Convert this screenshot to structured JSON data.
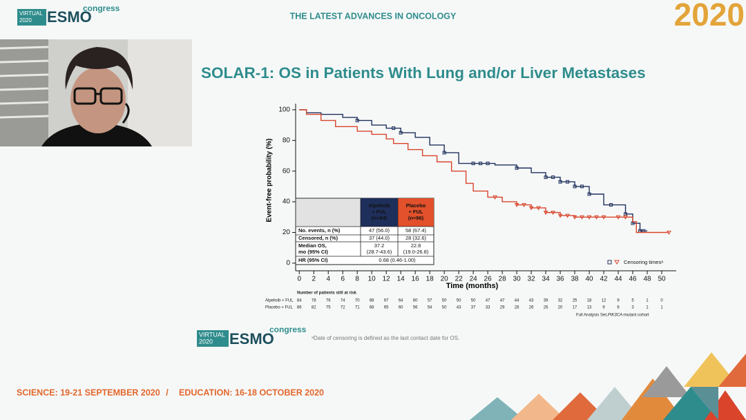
{
  "header": {
    "logo": {
      "badge": [
        "VIRTUAL",
        "2020"
      ],
      "name": "ESMO",
      "suffix": "congress"
    },
    "tagline": "THE LATEST ADVANCES IN ONCOLOGY",
    "year": "2020"
  },
  "slide": {
    "title": "SOLAR-1: OS in Patients With Lung and/or Liver Metastases",
    "analysis_set": [
      "Full Analysis Set, ",
      "PIK3CA",
      "-mutant cohort"
    ],
    "footnote": "ᵃDate of censoring is defined as the last contact date for OS."
  },
  "chart_data": {
    "type": "line",
    "xlabel": "Time (months)",
    "ylabel": "Event-free probability (%)",
    "xlim": [
      -0.5,
      52
    ],
    "ylim": [
      -5,
      104
    ],
    "xticks": [
      0,
      2,
      4,
      6,
      8,
      10,
      12,
      14,
      16,
      18,
      20,
      22,
      24,
      26,
      28,
      30,
      32,
      34,
      36,
      38,
      40,
      42,
      44,
      46,
      48,
      50
    ],
    "yticks": [
      0,
      20,
      40,
      60,
      80,
      100
    ],
    "legend": {
      "label": "Censoring timesᵃ",
      "position": "lower right"
    },
    "series": [
      {
        "name": "Alpelisib + FUL",
        "color": "#1f2f5c",
        "x": [
          0,
          1,
          3,
          6,
          8,
          10,
          12,
          14,
          16,
          18,
          20,
          22,
          27,
          30,
          32,
          34,
          36,
          38,
          40,
          42,
          45,
          46,
          47,
          48
        ],
        "values": [
          100,
          98,
          97,
          95,
          93,
          90,
          88,
          85,
          82,
          77,
          72,
          65,
          64,
          62,
          59,
          56,
          53,
          50,
          45,
          38,
          32,
          26,
          21,
          21
        ],
        "censored": [
          8,
          13,
          14,
          20,
          24,
          25,
          26,
          30,
          34,
          35,
          36,
          37,
          38,
          39,
          40,
          43,
          45,
          46,
          47,
          47.5
        ]
      },
      {
        "name": "Placebo + FUL",
        "color": "#d9442b",
        "x": [
          0,
          1,
          3,
          5,
          8,
          10,
          12,
          13,
          15,
          17,
          19,
          21,
          23,
          24,
          26,
          28,
          30,
          32,
          34,
          36,
          38,
          46,
          46.5,
          51
        ],
        "values": [
          100,
          97,
          93,
          89,
          86,
          84,
          81,
          78,
          74,
          70,
          66,
          60,
          52,
          47,
          43,
          40,
          38,
          36,
          33,
          31,
          30,
          27,
          20,
          20
        ],
        "censored": [
          27,
          30,
          31,
          32,
          33,
          34,
          35,
          36,
          37,
          38,
          39,
          40,
          41,
          42,
          44,
          45,
          51
        ]
      }
    ],
    "at_risk": {
      "title": "Number of patients still at risk",
      "rows": [
        [
          84,
          78,
          76,
          74,
          70,
          68,
          67,
          64,
          60,
          57,
          50,
          50,
          50,
          47,
          47,
          44,
          43,
          39,
          32,
          25,
          18,
          12,
          9,
          5,
          1,
          0
        ],
        [
          86,
          82,
          75,
          72,
          71,
          68,
          65,
          60,
          56,
          54,
          50,
          43,
          37,
          33,
          29,
          28,
          26,
          26,
          20,
          17,
          13,
          9,
          6,
          3,
          1,
          1
        ]
      ]
    },
    "results_table": {
      "header": [
        [
          "Alpelisib",
          "+ FUL",
          "(n=84)"
        ],
        [
          "Placebo",
          "+ FUL",
          "(n=86)"
        ]
      ],
      "rows": [
        [
          [
            "No. events, n (%)"
          ],
          [
            "47 (56.0)"
          ],
          [
            "58 (67.4)"
          ]
        ],
        [
          [
            "Censored, n (%)"
          ],
          [
            "37 (44.0)"
          ],
          [
            "28 (32.6)"
          ]
        ],
        [
          [
            "Median OS,",
            "mo (95% CI)"
          ],
          [
            "37.2",
            "(28.7-43.6)"
          ],
          [
            "22.8",
            "(19.0-26.8)"
          ]
        ],
        [
          [
            "HR (95% CI)"
          ],
          [
            "0.68 (0.46-1.00)"
          ]
        ]
      ]
    }
  },
  "footer": {
    "science": "SCIENCE: 19-21 SEPTEMBER 2020",
    "separator": "/",
    "education": "EDUCATION: 16-18 OCTOBER 2020"
  }
}
